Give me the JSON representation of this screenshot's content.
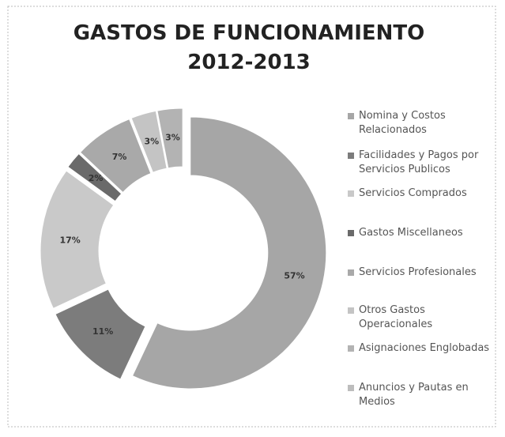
{
  "chart_data": {
    "type": "donut",
    "title": [
      "GASTOS DE FUNCIONAMIENTO",
      "2012-2013"
    ],
    "categories": [
      "Nomina y Costos Relacionados",
      "Facilidades y Pagos por Servicios Publicos",
      "Servicios Comprados",
      "Gastos Miscellaneos",
      "Servicios Profesionales",
      "Otros Gastos Operacionales",
      "Asignaciones Englobadas",
      "Anuncios y Pautas en Medios"
    ],
    "values": [
      57,
      11,
      17,
      2,
      7,
      3,
      3,
      0
    ],
    "value_labels": [
      "57%",
      "11%",
      "17%",
      "2%",
      "7%",
      "3%",
      "3%",
      null
    ],
    "colors": [
      "#a6a6a6",
      "#7c7c7c",
      "#c9c9c9",
      "#6a6a6a",
      "#a9a9a9",
      "#c4c4c4",
      "#b3b3b3",
      "#bdbdbd"
    ],
    "legend": "right"
  }
}
